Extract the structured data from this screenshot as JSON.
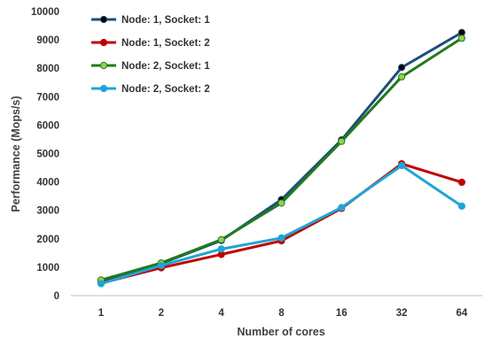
{
  "chart_data": {
    "type": "line",
    "categories": [
      "1",
      "2",
      "4",
      "8",
      "16",
      "32",
      "64"
    ],
    "series": [
      {
        "name": "Node: 1, Socket: 1",
        "color": "#1f4e79",
        "marker_fill": "#000000",
        "values": [
          520,
          1130,
          1940,
          3380,
          5480,
          8030,
          9260
        ]
      },
      {
        "name": "Node: 1, Socket: 2",
        "color": "#c00000",
        "marker_fill": "#c00000",
        "values": [
          440,
          980,
          1450,
          1930,
          3070,
          4640,
          3990
        ]
      },
      {
        "name": "Node: 2, Socket: 1",
        "color": "#217a1d",
        "marker_fill": "#92d050",
        "values": [
          550,
          1150,
          1970,
          3260,
          5430,
          7700,
          9060
        ]
      },
      {
        "name": "Node: 2, Socket: 2",
        "color": "#1fa5d6",
        "marker_fill": "#1fa5d6",
        "values": [
          420,
          1060,
          1640,
          2030,
          3100,
          4580,
          3150
        ]
      }
    ],
    "xlabel": "Number of cores",
    "ylabel": "Performance (Mops/s)",
    "ylim": [
      0,
      10000
    ],
    "yticks": [
      0,
      1000,
      2000,
      3000,
      4000,
      5000,
      6000,
      7000,
      8000,
      9000,
      10000
    ],
    "legend_position": "top-left",
    "grid": false
  }
}
